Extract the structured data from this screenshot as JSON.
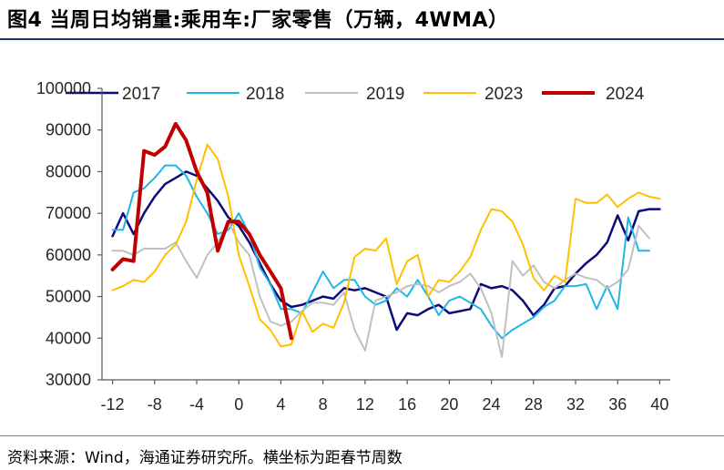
{
  "title": "图4   当周日均销量:乘用车:厂家零售（万辆，4WMA）",
  "source": "资料来源：Wind，海通证券研究所。横坐标为距春节周数",
  "chart_data": {
    "type": "line",
    "title": "当周日均销量:乘用车:厂家零售（万辆，4WMA）",
    "xlabel": "",
    "ylabel": "",
    "xlim": [
      -13,
      41
    ],
    "ylim": [
      30000,
      100000
    ],
    "x_ticks": [
      -12,
      -8,
      -4,
      0,
      4,
      8,
      12,
      16,
      20,
      24,
      28,
      32,
      36,
      40
    ],
    "y_ticks": [
      30000,
      40000,
      50000,
      60000,
      70000,
      80000,
      90000,
      100000
    ],
    "grid": false,
    "legend": "top",
    "series": [
      {
        "name": "2017",
        "color": "#0b0b7a",
        "width": 2.5,
        "points": [
          [
            -12,
            64500
          ],
          [
            -11,
            70000
          ],
          [
            -10,
            65000
          ],
          [
            -9,
            70000
          ],
          [
            -8,
            74000
          ],
          [
            -7,
            77000
          ],
          [
            -6,
            78500
          ],
          [
            -5,
            80000
          ],
          [
            -4,
            79000
          ],
          [
            -3,
            76000
          ],
          [
            -2,
            73000
          ],
          [
            -1,
            69000
          ],
          [
            0,
            67000
          ],
          [
            1,
            63000
          ],
          [
            2,
            58000
          ],
          [
            3,
            53000
          ],
          [
            4,
            49000
          ],
          [
            5,
            47500
          ],
          [
            6,
            48000
          ],
          [
            7,
            49000
          ],
          [
            8,
            50000
          ],
          [
            9,
            49500
          ],
          [
            10,
            52000
          ],
          [
            11,
            51500
          ],
          [
            12,
            52000
          ],
          [
            13,
            51000
          ],
          [
            14,
            50000
          ],
          [
            15,
            42000
          ],
          [
            16,
            46000
          ],
          [
            17,
            45500
          ],
          [
            18,
            47000
          ],
          [
            19,
            48000
          ],
          [
            20,
            46000
          ],
          [
            21,
            46500
          ],
          [
            22,
            47000
          ],
          [
            23,
            53000
          ],
          [
            24,
            52000
          ],
          [
            25,
            52500
          ],
          [
            26,
            51500
          ],
          [
            27,
            49000
          ],
          [
            28,
            45500
          ],
          [
            29,
            48000
          ],
          [
            30,
            52000
          ],
          [
            31,
            52500
          ],
          [
            32,
            55500
          ],
          [
            33,
            58000
          ],
          [
            34,
            60000
          ],
          [
            35,
            63000
          ],
          [
            36,
            69500
          ],
          [
            37,
            63500
          ],
          [
            38,
            70500
          ],
          [
            39,
            71000
          ],
          [
            40,
            71000
          ]
        ]
      },
      {
        "name": "2018",
        "color": "#1fb6e6",
        "width": 2,
        "points": [
          [
            -12,
            66000
          ],
          [
            -11,
            66000
          ],
          [
            -10,
            75000
          ],
          [
            -9,
            76000
          ],
          [
            -8,
            78500
          ],
          [
            -7,
            81500
          ],
          [
            -6,
            81500
          ],
          [
            -5,
            79000
          ],
          [
            -4,
            74000
          ],
          [
            -3,
            70000
          ],
          [
            -2,
            65000
          ],
          [
            -1,
            66000
          ],
          [
            0,
            70000
          ],
          [
            1,
            65000
          ],
          [
            2,
            57000
          ],
          [
            3,
            53000
          ],
          [
            4,
            47000
          ],
          [
            5,
            47000
          ],
          [
            6,
            46000
          ],
          [
            7,
            51000
          ],
          [
            8,
            56000
          ],
          [
            9,
            52000
          ],
          [
            10,
            54000
          ],
          [
            11,
            54000
          ],
          [
            12,
            50000
          ],
          [
            13,
            48000
          ],
          [
            14,
            49000
          ],
          [
            15,
            52000
          ],
          [
            16,
            50000
          ],
          [
            17,
            54000
          ],
          [
            18,
            50000
          ],
          [
            19,
            45500
          ],
          [
            20,
            49000
          ],
          [
            21,
            50000
          ],
          [
            22,
            48500
          ],
          [
            23,
            47000
          ],
          [
            24,
            43000
          ],
          [
            25,
            40000
          ],
          [
            26,
            42000
          ],
          [
            27,
            43500
          ],
          [
            28,
            45000
          ],
          [
            29,
            47500
          ],
          [
            30,
            49000
          ],
          [
            31,
            52500
          ],
          [
            32,
            52500
          ],
          [
            33,
            53000
          ],
          [
            34,
            47000
          ],
          [
            35,
            52500
          ],
          [
            36,
            47000
          ],
          [
            37,
            69000
          ],
          [
            38,
            61000
          ],
          [
            39,
            61000
          ]
        ]
      },
      {
        "name": "2019",
        "color": "#c0c0c0",
        "width": 2,
        "points": [
          [
            -12,
            61000
          ],
          [
            -11,
            61000
          ],
          [
            -10,
            60000
          ],
          [
            -9,
            61500
          ],
          [
            -8,
            61500
          ],
          [
            -7,
            61500
          ],
          [
            -6,
            63000
          ],
          [
            -5,
            58500
          ],
          [
            -4,
            54500
          ],
          [
            -3,
            60000
          ],
          [
            -2,
            63000
          ],
          [
            -1,
            68000
          ],
          [
            0,
            63000
          ],
          [
            1,
            60000
          ],
          [
            2,
            50000
          ],
          [
            3,
            44000
          ],
          [
            4,
            43000
          ],
          [
            5,
            44000
          ],
          [
            6,
            46500
          ],
          [
            7,
            48500
          ],
          [
            8,
            48500
          ],
          [
            9,
            48000
          ],
          [
            10,
            51000
          ],
          [
            11,
            42000
          ],
          [
            12,
            37000
          ],
          [
            13,
            49000
          ],
          [
            14,
            50000
          ],
          [
            15,
            51000
          ],
          [
            16,
            52500
          ],
          [
            17,
            53000
          ],
          [
            18,
            52500
          ],
          [
            19,
            51000
          ],
          [
            20,
            52500
          ],
          [
            21,
            53500
          ],
          [
            22,
            55500
          ],
          [
            23,
            52000
          ],
          [
            24,
            46000
          ],
          [
            25,
            35500
          ],
          [
            26,
            58500
          ],
          [
            27,
            55000
          ],
          [
            28,
            57500
          ],
          [
            29,
            53500
          ],
          [
            30,
            52000
          ],
          [
            31,
            54000
          ],
          [
            32,
            55500
          ],
          [
            33,
            54500
          ],
          [
            34,
            54000
          ],
          [
            35,
            52000
          ],
          [
            36,
            53500
          ],
          [
            37,
            56500
          ],
          [
            38,
            67000
          ],
          [
            39,
            64000
          ]
        ]
      },
      {
        "name": "2023",
        "color": "#ffc000",
        "width": 2,
        "points": [
          [
            -12,
            51500
          ],
          [
            -11,
            52500
          ],
          [
            -10,
            54000
          ],
          [
            -9,
            53500
          ],
          [
            -8,
            56000
          ],
          [
            -7,
            60000
          ],
          [
            -6,
            62500
          ],
          [
            -5,
            68000
          ],
          [
            -4,
            78000
          ],
          [
            -3,
            86500
          ],
          [
            -2,
            83000
          ],
          [
            -1,
            74000
          ],
          [
            0,
            60000
          ],
          [
            1,
            52500
          ],
          [
            2,
            44500
          ],
          [
            3,
            42000
          ],
          [
            4,
            38000
          ],
          [
            5,
            38500
          ],
          [
            6,
            46500
          ],
          [
            7,
            41500
          ],
          [
            8,
            43500
          ],
          [
            9,
            42500
          ],
          [
            10,
            48500
          ],
          [
            11,
            59500
          ],
          [
            12,
            61500
          ],
          [
            13,
            61000
          ],
          [
            14,
            64000
          ],
          [
            15,
            53000
          ],
          [
            16,
            58500
          ],
          [
            17,
            60000
          ],
          [
            18,
            50000
          ],
          [
            19,
            54000
          ],
          [
            20,
            53500
          ],
          [
            21,
            56000
          ],
          [
            22,
            59500
          ],
          [
            23,
            66000
          ],
          [
            24,
            71000
          ],
          [
            25,
            70500
          ],
          [
            26,
            68000
          ],
          [
            27,
            62500
          ],
          [
            28,
            54500
          ],
          [
            29,
            51500
          ],
          [
            30,
            55000
          ],
          [
            31,
            53500
          ],
          [
            32,
            73500
          ],
          [
            33,
            72500
          ],
          [
            34,
            72500
          ],
          [
            35,
            74500
          ],
          [
            36,
            71500
          ],
          [
            37,
            73500
          ],
          [
            38,
            75000
          ],
          [
            39,
            74000
          ],
          [
            40,
            73500
          ]
        ]
      },
      {
        "name": "2024",
        "color": "#c00000",
        "width": 4,
        "points": [
          [
            -12,
            56500
          ],
          [
            -11,
            59000
          ],
          [
            -10,
            58500
          ],
          [
            -9,
            85000
          ],
          [
            -8,
            84000
          ],
          [
            -7,
            86000
          ],
          [
            -6,
            91500
          ],
          [
            -5,
            87500
          ],
          [
            -4,
            80000
          ],
          [
            -3,
            75000
          ],
          [
            -2,
            61000
          ],
          [
            -1,
            68000
          ],
          [
            0,
            68000
          ],
          [
            1,
            65000
          ],
          [
            2,
            60000
          ],
          [
            3,
            56000
          ],
          [
            4,
            52000
          ],
          [
            5,
            40000
          ]
        ]
      }
    ]
  }
}
